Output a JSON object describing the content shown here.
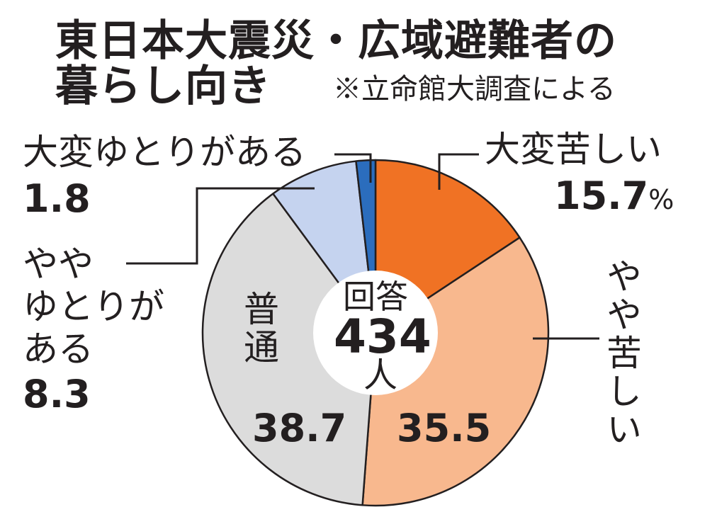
{
  "title": {
    "line1": "東日本大震災・広域避難者の",
    "line2": "暮らし向き",
    "source": "※立命館大調査による"
  },
  "center": {
    "label": "回答",
    "count": "434",
    "unit": "人"
  },
  "chart_data": {
    "type": "pie",
    "title": "東日本大震災・広域避難者の暮らし向き",
    "unit": "%",
    "total_respondents": 434,
    "slices": [
      {
        "label": "大変苦しい",
        "value": 15.7,
        "value_label": "15.7",
        "color": "#f07224"
      },
      {
        "label": "やや苦しい",
        "value": 35.5,
        "value_label": "35.5",
        "color": "#f8b88e"
      },
      {
        "label": "普通",
        "value": 38.7,
        "value_label": "38.7",
        "color": "#dcdcdc"
      },
      {
        "label": "ややゆとりがある",
        "value": 8.3,
        "value_label": "8.3",
        "color": "#c5d3ef"
      },
      {
        "label": "大変ゆとりがある",
        "value": 1.8,
        "value_label": "1.8",
        "color": "#2b6dbd"
      }
    ]
  },
  "labels": {
    "very_hard": "大変苦しい",
    "very_hard_value": "15.7",
    "percent_sign": "%",
    "somewhat_hard": "やや苦しい",
    "somewhat_hard_value": "35.5",
    "normal": "普通",
    "normal_value": "38.7",
    "somewhat_comfortable_lines": [
      "やや",
      "ゆとりが",
      "ある"
    ],
    "somewhat_comfortable_value": "8.3",
    "very_comfortable": "大変ゆとりがある",
    "very_comfortable_value": "1.8"
  }
}
